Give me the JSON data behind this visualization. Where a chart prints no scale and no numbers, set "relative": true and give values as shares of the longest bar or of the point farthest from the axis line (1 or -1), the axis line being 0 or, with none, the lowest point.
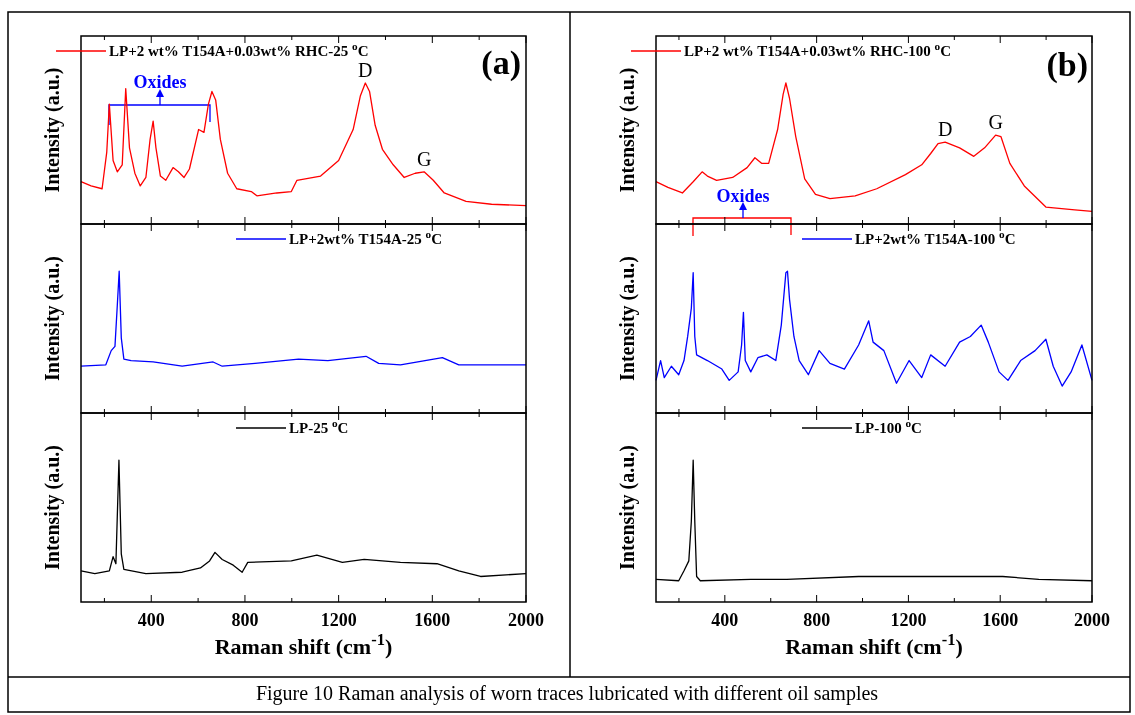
{
  "chart_data": [
    {
      "type": "line",
      "relative": true,
      "ylabel": "Intensity (a.u.)",
      "xlim": [
        100,
        2000
      ],
      "xticks": [
        {
          "value": 200,
          "label": null
        },
        400,
        {
          "value": 600,
          "label": null
        },
        800,
        {
          "value": 1000,
          "label": null
        },
        1200,
        {
          "value": 1400,
          "label": null
        },
        1600,
        {
          "value": 1800,
          "label": null
        },
        2000
      ],
      "tick_labels": false,
      "legend": "top left",
      "x": [
        100,
        143,
        190,
        210,
        221,
        237,
        255,
        276,
        291,
        307,
        330,
        353,
        377,
        395,
        408,
        420,
        439,
        462,
        493,
        516,
        540,
        563,
        602,
        625,
        644,
        659,
        675,
        695,
        726,
        765,
        827,
        851,
        936,
        998,
        1022,
        1123,
        1200,
        1262,
        1293,
        1314,
        1332,
        1356,
        1387,
        1433,
        1480,
        1527,
        1565,
        1604,
        1651,
        1744,
        1853,
        2000
      ],
      "series": [
        {
          "name": "LP+2 wt% T154A+0.03wt% RHC-25 $^{o}$C",
          "color": "#ff0000",
          "values": [
            0.3,
            0.27,
            0.25,
            0.51,
            0.85,
            0.45,
            0.37,
            0.42,
            0.96,
            0.54,
            0.36,
            0.27,
            0.33,
            0.6,
            0.73,
            0.54,
            0.34,
            0.31,
            0.4,
            0.37,
            0.33,
            0.39,
            0.67,
            0.65,
            0.85,
            0.94,
            0.88,
            0.6,
            0.36,
            0.25,
            0.23,
            0.2,
            0.22,
            0.23,
            0.31,
            0.34,
            0.45,
            0.67,
            0.91,
            1,
            0.94,
            0.7,
            0.53,
            0.42,
            0.33,
            0.36,
            0.37,
            0.31,
            0.22,
            0.16,
            0.14,
            0.13
          ]
        }
      ],
      "annotations": [
        "(a)",
        "Oxides",
        {
          "text": "D",
          "x": 1314,
          "y": 1
        },
        {
          "text": "G",
          "x": 1565,
          "y": 0.37
        },
        "Figure 10 Raman analysis of worn traces lubricated with different oil samples"
      ]
    },
    {
      "type": "line",
      "relative": true,
      "ylabel": "Intensity (a.u.)",
      "xlim": [
        100,
        2000
      ],
      "xticks": [
        {
          "value": 200,
          "label": null
        },
        400,
        {
          "value": 600,
          "label": null
        },
        800,
        {
          "value": 1000,
          "label": null
        },
        1200,
        {
          "value": 1400,
          "label": null
        },
        1600,
        {
          "value": 1800,
          "label": null
        },
        2000
      ],
      "tick_labels": false,
      "legend": "top right",
      "x": [
        100,
        206,
        229,
        245,
        255,
        263,
        272,
        283,
        314,
        408,
        532,
        664,
        703,
        843,
        1029,
        1154,
        1317,
        1371,
        1464,
        1643,
        1713,
        2000
      ],
      "series": [
        {
          "name": "LP+2wt% T154A-25 $^{o}$C",
          "color": "#0000ff",
          "values": [
            0.33,
            0.34,
            0.44,
            0.47,
            0.76,
            1,
            0.53,
            0.38,
            0.37,
            0.36,
            0.33,
            0.36,
            0.33,
            0.35,
            0.38,
            0.37,
            0.4,
            0.35,
            0.34,
            0.39,
            0.34,
            0.34
          ]
        }
      ]
    },
    {
      "type": "line",
      "relative": true,
      "ylabel": "Intensity (a.u.)",
      "xlabel": "Raman shift (cm$^{-1}$)",
      "xlim": [
        100,
        2000
      ],
      "xticks": [
        {
          "value": 200,
          "label": null
        },
        400,
        {
          "value": 600,
          "label": null
        },
        800,
        {
          "value": 1000,
          "label": null
        },
        1200,
        {
          "value": 1400,
          "label": null
        },
        1600,
        {
          "value": 1800,
          "label": null
        },
        2000
      ],
      "tick_labels": "x",
      "legend": "top right",
      "x": [
        100,
        159,
        221,
        237,
        249,
        262,
        272,
        283,
        377,
        532,
        610,
        649,
        672,
        703,
        750,
        788,
        812,
        998,
        1107,
        1216,
        1309,
        1464,
        1620,
        1713,
        1806,
        2000
      ],
      "series": [
        {
          "name": "LP-25 $^{o}$C",
          "color": "#000000",
          "values": [
            0.22,
            0.2,
            0.22,
            0.32,
            0.27,
            1,
            0.34,
            0.23,
            0.2,
            0.21,
            0.24,
            0.29,
            0.35,
            0.3,
            0.26,
            0.21,
            0.28,
            0.29,
            0.33,
            0.28,
            0.3,
            0.28,
            0.27,
            0.22,
            0.18,
            0.2
          ]
        }
      ]
    },
    {
      "type": "line",
      "relative": true,
      "ylabel": "Intensity (a.u.)",
      "xlim": [
        100,
        2000
      ],
      "xticks": [
        {
          "value": 200,
          "label": null
        },
        400,
        {
          "value": 600,
          "label": null
        },
        800,
        {
          "value": 1000,
          "label": null
        },
        1200,
        {
          "value": 1400,
          "label": null
        },
        1600,
        {
          "value": 1800,
          "label": null
        },
        2000
      ],
      "tick_labels": false,
      "legend": "top left",
      "x": [
        100,
        152,
        215,
        262,
        301,
        324,
        364,
        434,
        497,
        531,
        560,
        591,
        630,
        654,
        666,
        682,
        709,
        748,
        795,
        858,
        968,
        1062,
        1187,
        1258,
        1297,
        1329,
        1360,
        1423,
        1485,
        1532,
        1580,
        1603,
        1642,
        1705,
        1799,
        1925,
        2000
      ],
      "series": [
        {
          "name": "LP+2 wt% T154A+0.03wt% RHC-100 $^{o}$C",
          "color": "#ff0000",
          "values": [
            0.3,
            0.26,
            0.22,
            0.3,
            0.37,
            0.34,
            0.31,
            0.33,
            0.4,
            0.47,
            0.43,
            0.43,
            0.67,
            0.92,
            1,
            0.89,
            0.62,
            0.32,
            0.21,
            0.18,
            0.2,
            0.25,
            0.35,
            0.42,
            0.5,
            0.57,
            0.58,
            0.54,
            0.48,
            0.54,
            0.63,
            0.62,
            0.43,
            0.27,
            0.12,
            0.1,
            0.09
          ]
        }
      ],
      "annotations": [
        "(b)",
        "Oxides",
        {
          "text": "D",
          "x": 1360,
          "y": 0.58
        },
        {
          "text": "G",
          "x": 1580,
          "y": 0.63
        }
      ]
    },
    {
      "type": "line",
      "relative": true,
      "ylabel": "Intensity (a.u.)",
      "xlim": [
        100,
        2000
      ],
      "xticks": [
        {
          "value": 200,
          "label": null
        },
        400,
        {
          "value": 600,
          "label": null
        },
        800,
        {
          "value": 1000,
          "label": null
        },
        1200,
        {
          "value": 1400,
          "label": null
        },
        1600,
        {
          "value": 1800,
          "label": null
        },
        2000
      ],
      "tick_labels": false,
      "legend": "top right",
      "x": [
        100,
        120,
        136,
        167,
        199,
        222,
        238,
        254,
        262,
        269,
        277,
        324,
        387,
        419,
        458,
        473,
        481,
        489,
        513,
        544,
        583,
        622,
        646,
        666,
        673,
        682,
        701,
        724,
        764,
        811,
        858,
        921,
        983,
        1027,
        1046,
        1093,
        1148,
        1203,
        1258,
        1297,
        1360,
        1423,
        1470,
        1517,
        1548,
        1595,
        1634,
        1689,
        1752,
        1799,
        1831,
        1870,
        1909,
        1956,
        2000
      ],
      "series": [
        {
          "name": "LP+2wt% T154A-100 $^{o}$C",
          "color": "#0000ff",
          "values": [
            0.23,
            0.37,
            0.25,
            0.33,
            0.27,
            0.37,
            0.54,
            0.74,
            0.99,
            0.54,
            0.41,
            0.37,
            0.31,
            0.23,
            0.29,
            0.48,
            0.71,
            0.37,
            0.29,
            0.39,
            0.41,
            0.37,
            0.62,
            0.99,
            1,
            0.8,
            0.54,
            0.37,
            0.27,
            0.44,
            0.35,
            0.31,
            0.48,
            0.65,
            0.5,
            0.44,
            0.21,
            0.37,
            0.25,
            0.41,
            0.33,
            0.5,
            0.54,
            0.62,
            0.5,
            0.29,
            0.23,
            0.37,
            0.44,
            0.52,
            0.33,
            0.19,
            0.29,
            0.48,
            0.23
          ]
        }
      ]
    },
    {
      "type": "line",
      "relative": true,
      "ylabel": "Intensity (a.u.)",
      "xlabel": "Raman shift (cm$^{-1}$)",
      "xlim": [
        100,
        2000
      ],
      "xticks": [
        {
          "value": 200,
          "label": null
        },
        400,
        {
          "value": 600,
          "label": null
        },
        800,
        {
          "value": 1000,
          "label": null
        },
        1200,
        {
          "value": 1400,
          "label": null
        },
        1600,
        {
          "value": 1800,
          "label": null
        },
        2000
      ],
      "tick_labels": "x",
      "legend": "top right",
      "x": [
        100,
        199,
        222,
        243,
        254,
        262,
        269,
        277,
        293,
        513,
        670,
        983,
        1297,
        1611,
        1768,
        2000
      ],
      "series": [
        {
          "name": "LP-100 $^{o}$C",
          "color": "#000000",
          "values": [
            0.16,
            0.15,
            0.22,
            0.29,
            0.57,
            1,
            0.57,
            0.18,
            0.15,
            0.16,
            0.16,
            0.18,
            0.18,
            0.18,
            0.16,
            0.15
          ]
        }
      ]
    }
  ]
}
